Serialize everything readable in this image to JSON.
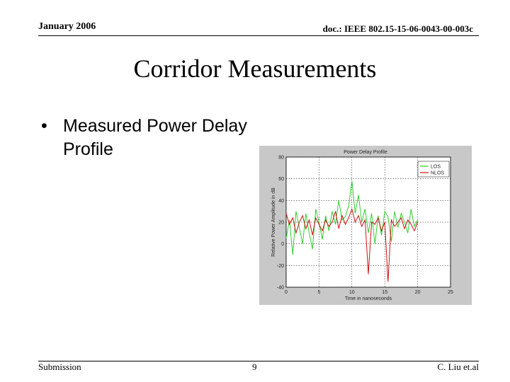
{
  "header": {
    "date": "January 2006",
    "doc_id": "doc.: IEEE 802.15-15-06-0043-00-003c"
  },
  "slide": {
    "title": "Corridor Measurements",
    "bullet_marker": "•",
    "bullet_text": "Measured Power Delay Profile"
  },
  "footer": {
    "left": "Submission",
    "page": "9",
    "right": "C. Liu et.al"
  },
  "colors": {
    "series_green": "#33cc33",
    "series_red": "#cc1111",
    "plot_bg": "#c8c8c8"
  },
  "chart_data": {
    "type": "line",
    "title": "Power Delay Profile",
    "xlabel": "Time in nanoseconds",
    "ylabel": "Relative Power Amplitude in dB",
    "xlim": [
      0,
      25
    ],
    "ylim": [
      -40,
      80
    ],
    "xticks": [
      "0",
      "5",
      "10",
      "15",
      "20",
      "25"
    ],
    "yticks": [
      "80",
      "60",
      "40",
      "20",
      "0",
      "-20",
      "-40"
    ],
    "grid": true,
    "legend_position": "top-right",
    "series": [
      {
        "name": "LOS",
        "color": "#33cc33",
        "x": [
          0,
          0.5,
          1,
          1.5,
          2,
          2.5,
          3,
          3.5,
          4,
          4.5,
          5,
          5.5,
          6,
          6.5,
          7,
          7.5,
          8,
          8.5,
          9,
          9.5,
          10,
          10.5,
          11,
          11.5,
          12,
          12.5,
          13,
          13.5,
          14,
          14.5,
          15,
          15.5,
          16,
          16.5,
          17,
          17.5,
          18,
          18.5,
          19,
          19.5,
          20
        ],
        "y": [
          5,
          22,
          -10,
          30,
          15,
          0,
          28,
          10,
          -5,
          32,
          20,
          4,
          26,
          12,
          30,
          18,
          40,
          22,
          25,
          35,
          58,
          28,
          45,
          20,
          32,
          10,
          28,
          0,
          26,
          8,
          30,
          25,
          2,
          30,
          15,
          28,
          20,
          10,
          32,
          16,
          22
        ]
      },
      {
        "name": "NLOS",
        "color": "#cc1111",
        "x": [
          0,
          0.5,
          1,
          1.5,
          2,
          2.5,
          3,
          3.5,
          4,
          4.5,
          5,
          5.5,
          6,
          6.5,
          7,
          7.5,
          8,
          8.5,
          9,
          9.5,
          10,
          10.5,
          11,
          11.5,
          12,
          12.5,
          13,
          13.5,
          14,
          14.5,
          15,
          15.5,
          16,
          16.5,
          17,
          17.5,
          18,
          18.5,
          19,
          19.5,
          20
        ],
        "y": [
          28,
          18,
          24,
          10,
          20,
          26,
          14,
          22,
          8,
          24,
          18,
          12,
          22,
          16,
          20,
          30,
          14,
          26,
          18,
          24,
          32,
          20,
          26,
          16,
          22,
          -28,
          20,
          18,
          24,
          12,
          20,
          -35,
          22,
          16,
          20,
          24,
          14,
          22,
          18,
          12,
          20
        ]
      }
    ]
  }
}
